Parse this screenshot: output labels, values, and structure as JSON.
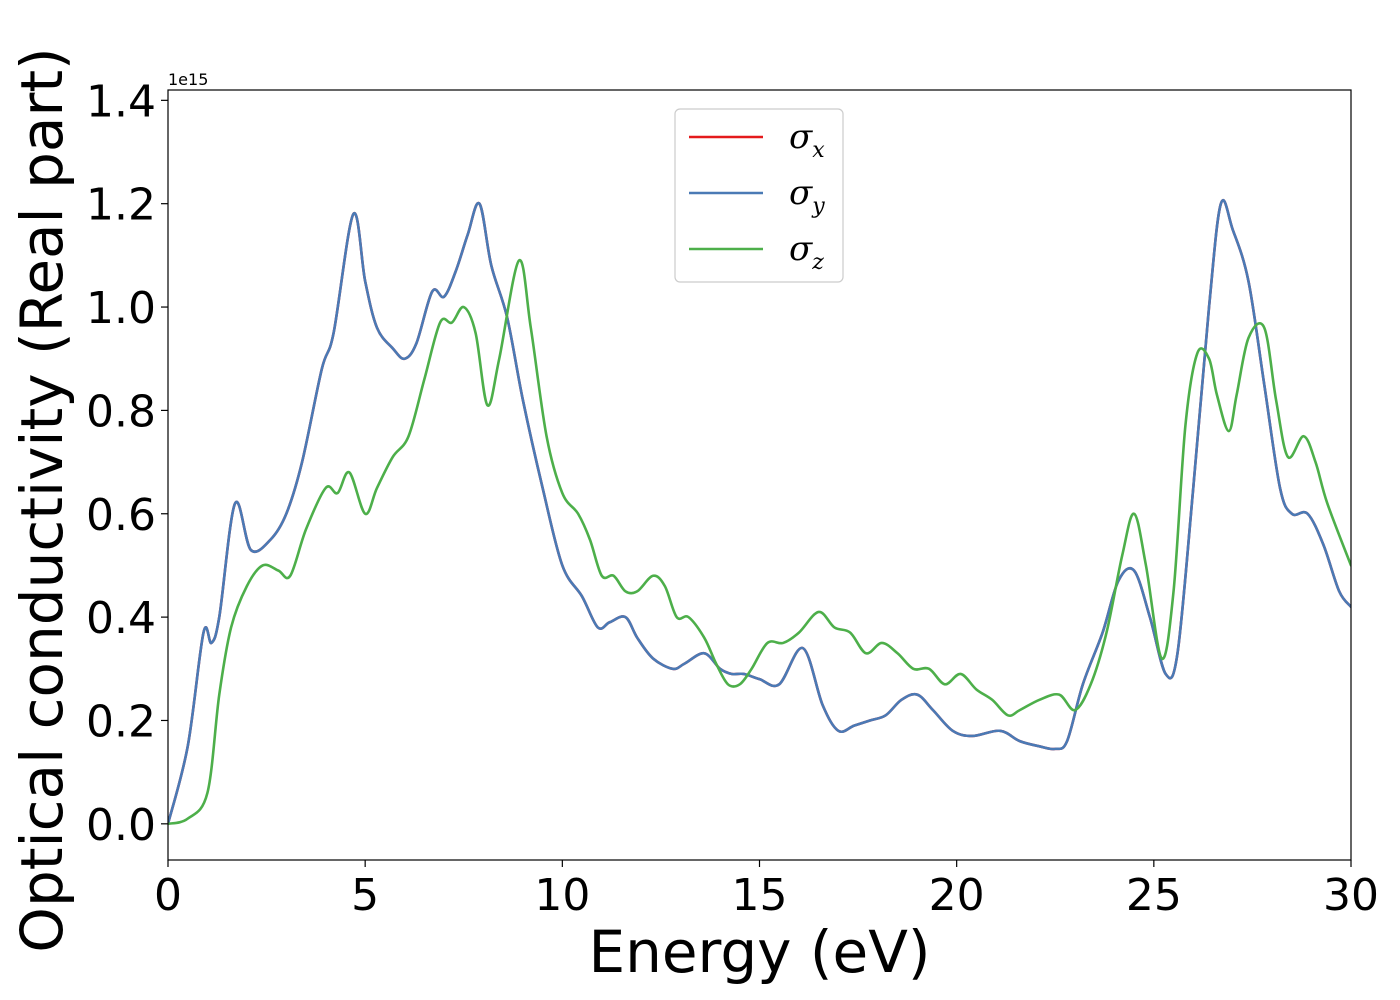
{
  "chart_data": {
    "type": "line",
    "xlabel": "Energy (eV)",
    "ylabel": "Optical conductivity (Real part)",
    "y_offset_text": "1e15",
    "xlim": [
      0,
      30
    ],
    "ylim": [
      -0.07,
      1.42
    ],
    "x_ticks": [
      0,
      5,
      10,
      15,
      20,
      25,
      30
    ],
    "x_tick_labels": [
      "0",
      "5",
      "10",
      "15",
      "20",
      "25",
      "30"
    ],
    "y_ticks": [
      0.0,
      0.2,
      0.4,
      0.6,
      0.8,
      1.0,
      1.2,
      1.4
    ],
    "y_tick_labels": [
      "0.0",
      "0.2",
      "0.4",
      "0.6",
      "0.8",
      "1.0",
      "1.2",
      "1.4"
    ],
    "grid": false,
    "legend_position": "top-center",
    "series": [
      {
        "name": "σ",
        "subscript": "x",
        "color": "#e41a1c",
        "x": [
          0,
          0.5,
          0.9,
          1.1,
          1.3,
          1.7,
          2.1,
          2.6,
          3.0,
          3.4,
          3.9,
          4.2,
          4.7,
          5.0,
          5.3,
          5.7,
          6.0,
          6.3,
          6.7,
          7.0,
          7.3,
          7.6,
          7.9,
          8.2,
          8.6,
          9.0,
          9.5,
          10.0,
          10.5,
          10.9,
          11.2,
          11.6,
          11.9,
          12.3,
          12.8,
          13.1,
          13.6,
          14.0,
          14.3,
          14.6,
          15.0,
          15.5,
          16.1,
          16.6,
          17.0,
          17.4,
          17.8,
          18.2,
          18.6,
          19.0,
          19.4,
          19.9,
          20.4,
          21.1,
          21.6,
          22.1,
          22.5,
          22.8,
          23.2,
          23.7,
          24.1,
          24.5,
          24.9,
          25.3,
          25.6,
          26.0,
          26.4,
          26.7,
          27.0,
          27.4,
          27.8,
          28.2,
          28.5,
          28.9,
          29.3,
          29.7,
          30.0
        ],
        "y": [
          0.0,
          0.15,
          0.37,
          0.35,
          0.4,
          0.62,
          0.53,
          0.55,
          0.6,
          0.7,
          0.88,
          0.95,
          1.18,
          1.05,
          0.96,
          0.92,
          0.9,
          0.93,
          1.03,
          1.02,
          1.07,
          1.14,
          1.2,
          1.08,
          0.98,
          0.82,
          0.65,
          0.5,
          0.44,
          0.38,
          0.39,
          0.4,
          0.36,
          0.32,
          0.3,
          0.31,
          0.33,
          0.3,
          0.29,
          0.29,
          0.28,
          0.27,
          0.34,
          0.23,
          0.18,
          0.19,
          0.2,
          0.21,
          0.24,
          0.25,
          0.22,
          0.18,
          0.17,
          0.18,
          0.16,
          0.15,
          0.145,
          0.16,
          0.27,
          0.37,
          0.47,
          0.49,
          0.4,
          0.29,
          0.33,
          0.65,
          1.0,
          1.2,
          1.15,
          1.05,
          0.85,
          0.65,
          0.6,
          0.6,
          0.54,
          0.45,
          0.42
        ]
      },
      {
        "name": "σ",
        "subscript": "y",
        "color": "#4a7ab5",
        "x": [
          0,
          0.5,
          0.9,
          1.1,
          1.3,
          1.7,
          2.1,
          2.6,
          3.0,
          3.4,
          3.9,
          4.2,
          4.7,
          5.0,
          5.3,
          5.7,
          6.0,
          6.3,
          6.7,
          7.0,
          7.3,
          7.6,
          7.9,
          8.2,
          8.6,
          9.0,
          9.5,
          10.0,
          10.5,
          10.9,
          11.2,
          11.6,
          11.9,
          12.3,
          12.8,
          13.1,
          13.6,
          14.0,
          14.3,
          14.6,
          15.0,
          15.5,
          16.1,
          16.6,
          17.0,
          17.4,
          17.8,
          18.2,
          18.6,
          19.0,
          19.4,
          19.9,
          20.4,
          21.1,
          21.6,
          22.1,
          22.5,
          22.8,
          23.2,
          23.7,
          24.1,
          24.5,
          24.9,
          25.3,
          25.6,
          26.0,
          26.4,
          26.7,
          27.0,
          27.4,
          27.8,
          28.2,
          28.5,
          28.9,
          29.3,
          29.7,
          30.0
        ],
        "y": [
          0.0,
          0.15,
          0.37,
          0.35,
          0.4,
          0.62,
          0.53,
          0.55,
          0.6,
          0.7,
          0.88,
          0.95,
          1.18,
          1.05,
          0.96,
          0.92,
          0.9,
          0.93,
          1.03,
          1.02,
          1.07,
          1.14,
          1.2,
          1.08,
          0.98,
          0.82,
          0.65,
          0.5,
          0.44,
          0.38,
          0.39,
          0.4,
          0.36,
          0.32,
          0.3,
          0.31,
          0.33,
          0.3,
          0.29,
          0.29,
          0.28,
          0.27,
          0.34,
          0.23,
          0.18,
          0.19,
          0.2,
          0.21,
          0.24,
          0.25,
          0.22,
          0.18,
          0.17,
          0.18,
          0.16,
          0.15,
          0.145,
          0.16,
          0.27,
          0.37,
          0.47,
          0.49,
          0.4,
          0.29,
          0.33,
          0.65,
          1.0,
          1.2,
          1.15,
          1.05,
          0.85,
          0.65,
          0.6,
          0.6,
          0.54,
          0.45,
          0.42
        ]
      },
      {
        "name": "σ",
        "subscript": "z",
        "color": "#4daf4a",
        "x": [
          0,
          0.5,
          1.0,
          1.3,
          1.6,
          2.0,
          2.4,
          2.8,
          3.1,
          3.5,
          4.0,
          4.3,
          4.6,
          5.0,
          5.3,
          5.7,
          6.1,
          6.5,
          6.9,
          7.2,
          7.5,
          7.8,
          8.1,
          8.4,
          8.9,
          9.2,
          9.6,
          10.0,
          10.4,
          10.7,
          11.0,
          11.3,
          11.6,
          11.9,
          12.3,
          12.6,
          12.9,
          13.2,
          13.6,
          13.9,
          14.2,
          14.5,
          14.8,
          15.2,
          15.6,
          16.0,
          16.5,
          16.9,
          17.3,
          17.7,
          18.1,
          18.5,
          18.9,
          19.3,
          19.7,
          20.1,
          20.5,
          20.9,
          21.3,
          21.6,
          22.1,
          22.6,
          23.0,
          23.4,
          23.8,
          24.2,
          24.5,
          24.8,
          25.2,
          25.5,
          25.8,
          26.1,
          26.4,
          26.6,
          26.9,
          27.1,
          27.4,
          27.8,
          28.1,
          28.4,
          28.8,
          29.1,
          29.4,
          30.0
        ],
        "y": [
          0.0,
          0.01,
          0.06,
          0.25,
          0.38,
          0.46,
          0.5,
          0.49,
          0.48,
          0.57,
          0.65,
          0.64,
          0.68,
          0.6,
          0.65,
          0.71,
          0.75,
          0.86,
          0.97,
          0.97,
          1.0,
          0.95,
          0.81,
          0.9,
          1.09,
          0.96,
          0.75,
          0.64,
          0.6,
          0.55,
          0.48,
          0.48,
          0.45,
          0.45,
          0.48,
          0.46,
          0.4,
          0.4,
          0.36,
          0.31,
          0.27,
          0.27,
          0.3,
          0.35,
          0.35,
          0.37,
          0.41,
          0.38,
          0.37,
          0.33,
          0.35,
          0.33,
          0.3,
          0.3,
          0.27,
          0.29,
          0.26,
          0.24,
          0.21,
          0.22,
          0.24,
          0.25,
          0.22,
          0.27,
          0.37,
          0.52,
          0.6,
          0.5,
          0.32,
          0.45,
          0.77,
          0.91,
          0.9,
          0.83,
          0.76,
          0.83,
          0.94,
          0.96,
          0.82,
          0.71,
          0.75,
          0.7,
          0.62,
          0.5
        ]
      }
    ]
  }
}
